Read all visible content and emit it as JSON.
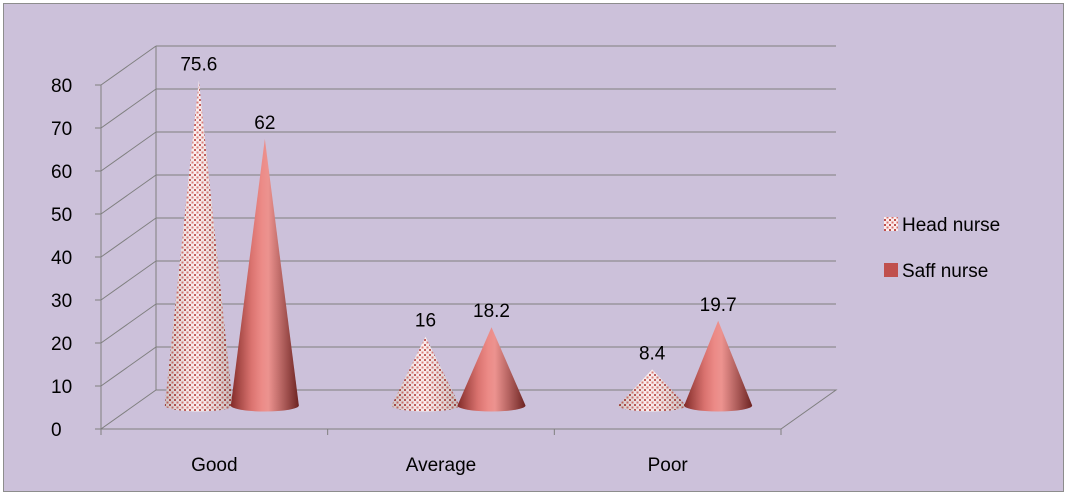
{
  "chart_data": {
    "type": "bar",
    "style": "3d-cone",
    "title": "",
    "xlabel": "",
    "ylabel": "",
    "categories": [
      "Good",
      "Average",
      "Poor"
    ],
    "series": [
      {
        "name": "Head nurse",
        "values": [
          75.6,
          16,
          8.4
        ],
        "color": "#c0504d",
        "pattern": "dotted-white"
      },
      {
        "name": "Saff nurse",
        "values": [
          62,
          18.2,
          19.7
        ],
        "color": "#c0504d",
        "pattern": "solid"
      }
    ],
    "data_labels": [
      [
        "75.6",
        "16",
        "8.4"
      ],
      [
        "62",
        "18.2",
        "19.7"
      ]
    ],
    "y_ticks": [
      "0",
      "10",
      "20",
      "30",
      "40",
      "50",
      "60",
      "70",
      "80"
    ],
    "ylim": [
      0,
      80
    ],
    "grid": true,
    "legend_position": "right",
    "background_color": "#ccc1da"
  }
}
